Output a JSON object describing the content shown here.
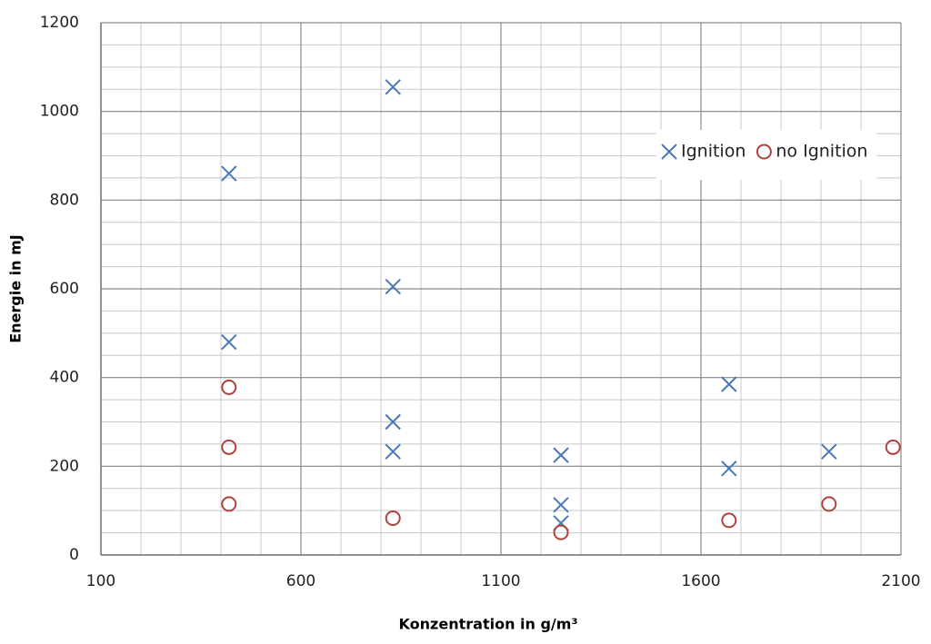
{
  "chart_data": {
    "type": "scatter",
    "x_label": "Konzentration in g/m³",
    "y_label": "Energie in mJ",
    "xlim": [
      100,
      2100
    ],
    "xticks": [
      100,
      600,
      1100,
      1600,
      2100
    ],
    "ylim": [
      0,
      1200
    ],
    "yticks": [
      0,
      200,
      400,
      600,
      800,
      1000,
      1200
    ],
    "grid": true,
    "minor_grid": {
      "x": 100,
      "y": 50
    },
    "legend": "upper right",
    "series": [
      {
        "name": "Ignition",
        "color": "#4a78b8",
        "marker": "x",
        "x": [
          420,
          420,
          830,
          830,
          830,
          830,
          1250,
          1250,
          1250,
          1670,
          1670,
          1920
        ],
        "values": [
          860,
          480,
          1055,
          605,
          300,
          233,
          225,
          113,
          72,
          385,
          195,
          233
        ]
      },
      {
        "name": "no Ignition",
        "color": "#b0413e",
        "marker": "o",
        "x": [
          420,
          420,
          420,
          830,
          1250,
          1670,
          1920,
          2080
        ],
        "values": [
          378,
          243,
          115,
          83,
          51,
          78,
          115,
          243
        ]
      }
    ]
  }
}
